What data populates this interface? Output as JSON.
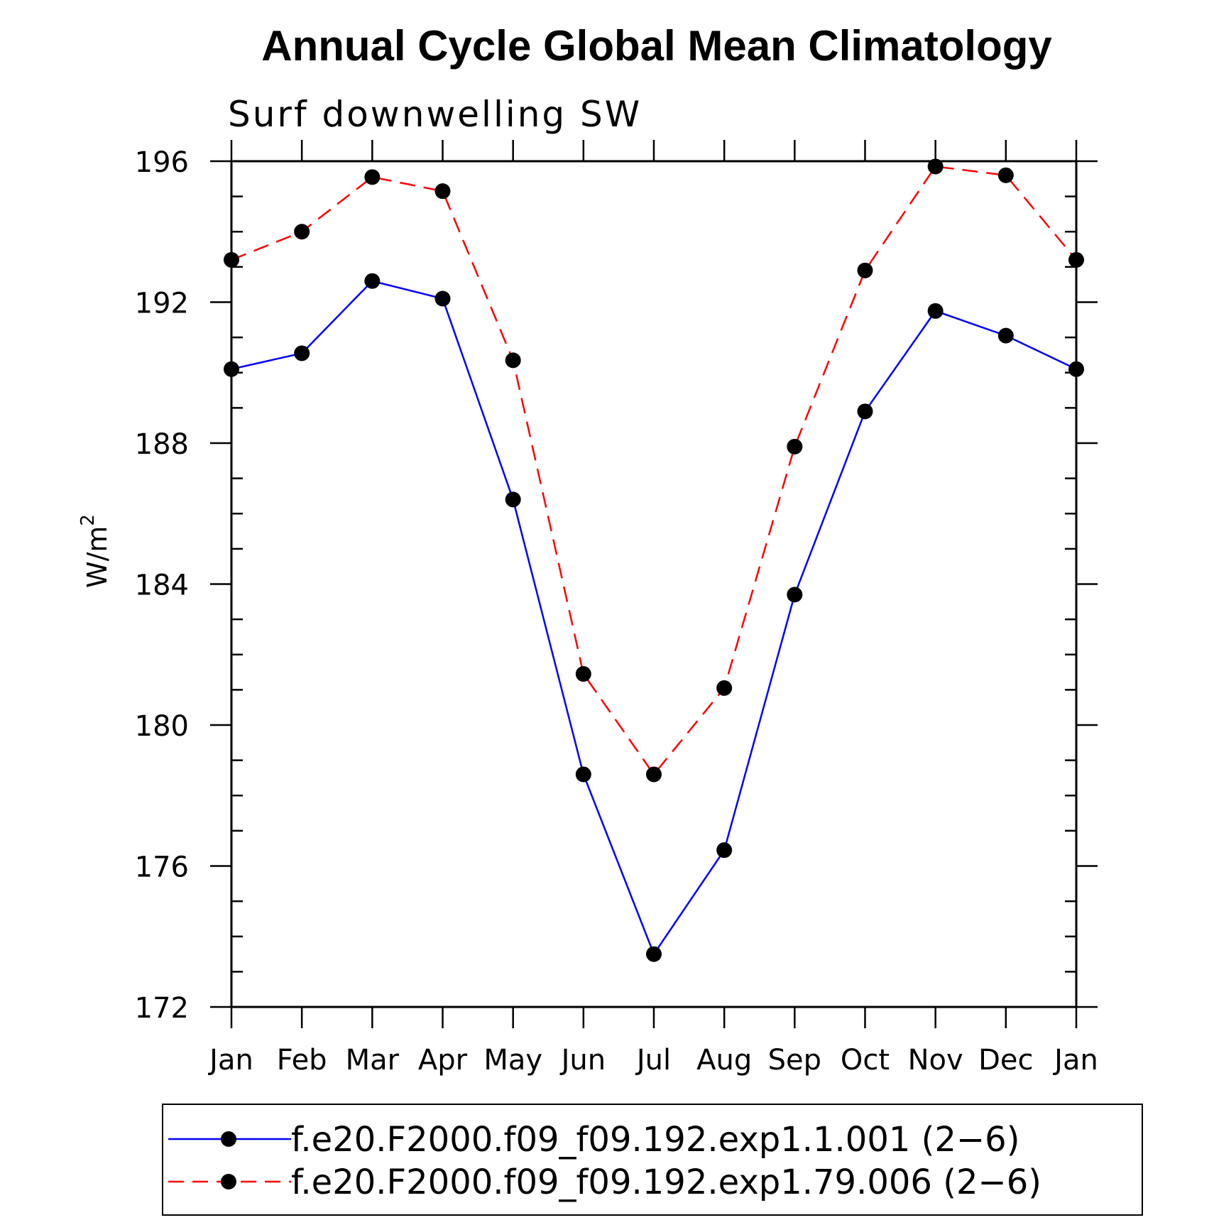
{
  "chart_data": {
    "type": "line",
    "title": "Annual Cycle Global Mean Climatology",
    "subtitle": "Surf downwelling SW",
    "ylabel_main": "W/m",
    "ylabel_sup": "2",
    "xlabel": "",
    "categories": [
      "Jan",
      "Feb",
      "Mar",
      "Apr",
      "May",
      "Jun",
      "Jul",
      "Aug",
      "Sep",
      "Oct",
      "Nov",
      "Dec",
      "Jan"
    ],
    "yticks": [
      172,
      176,
      180,
      184,
      188,
      192,
      196
    ],
    "ylim": [
      172,
      196
    ],
    "grid": false,
    "legend_position": "bottom",
    "series": [
      {
        "name": "f.e20.F2000.f09_f09.192.exp1.1.001 (2−6)",
        "color": "#0000ff",
        "dash": "solid",
        "values": [
          190.1,
          190.55,
          192.6,
          192.1,
          186.4,
          178.6,
          173.5,
          176.45,
          183.7,
          188.9,
          191.75,
          191.05,
          190.1
        ]
      },
      {
        "name": "f.e20.F2000.f09_f09.192.exp1.79.006 (2−6)",
        "color": "#ff0000",
        "dash": "dashed",
        "values": [
          193.2,
          194.0,
          195.55,
          195.15,
          190.35,
          181.45,
          178.6,
          181.05,
          187.9,
          192.9,
          195.85,
          195.6,
          193.2
        ]
      }
    ]
  }
}
